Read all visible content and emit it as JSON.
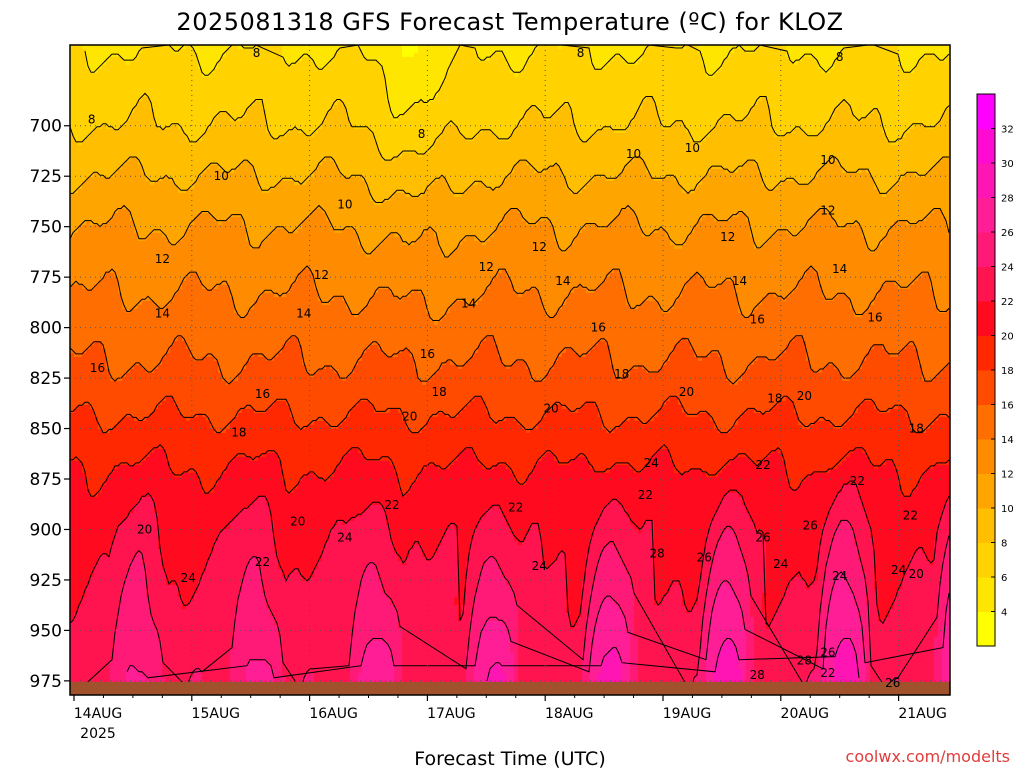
{
  "chart_data": {
    "type": "heatmap",
    "title": "2025081318 GFS Forecast Temperature (ºC) for KLOZ",
    "xlabel": "Forecast Time (UTC)",
    "ylabel": "",
    "x_ticks": [
      "14AUG",
      "15AUG",
      "16AUG",
      "17AUG",
      "18AUG",
      "19AUG",
      "20AUG",
      "21AUG"
    ],
    "x_year": "2025",
    "y_axis": {
      "min": 660,
      "max": 982,
      "reversed": true
    },
    "y_ticks": [
      700,
      725,
      750,
      775,
      800,
      825,
      850,
      875,
      900,
      925,
      950,
      975
    ],
    "x_range": {
      "start_day": 0,
      "end_day": 7.2
    },
    "colorbar": {
      "levels": [
        2,
        4,
        6,
        8,
        10,
        12,
        14,
        16,
        18,
        20,
        22,
        24,
        26,
        28,
        30,
        32,
        34
      ],
      "tick_labels": [
        4,
        6,
        8,
        10,
        12,
        14,
        16,
        18,
        20,
        22,
        24,
        26,
        28,
        30,
        32
      ],
      "colors": [
        "#ffff00",
        "#ffe600",
        "#ffd200",
        "#ffbe00",
        "#ffa500",
        "#ff8c00",
        "#ff6e00",
        "#ff4b00",
        "#ff2800",
        "#ff0a1e",
        "#ff1450",
        "#ff1a78",
        "#ff1e96",
        "#ff14b4",
        "#ff0ad2",
        "#ff00ff"
      ]
    },
    "isotherm_profile": {
      "pressure": [
        680,
        700,
        725,
        750,
        775,
        800,
        825,
        850,
        875,
        900,
        925,
        950,
        975
      ],
      "temperature": [
        7,
        8,
        10,
        12,
        13.5,
        15,
        16.5,
        18.5,
        20.5,
        22,
        23,
        24,
        25
      ]
    },
    "contour_labels": [
      {
        "t": "8",
        "x": 0.15,
        "p": 697
      },
      {
        "t": "8",
        "x": 1.55,
        "p": 664
      },
      {
        "t": "8",
        "x": 2.95,
        "p": 704
      },
      {
        "t": "8",
        "x": 4.3,
        "p": 664
      },
      {
        "t": "8",
        "x": 6.5,
        "p": 666
      },
      {
        "t": "10",
        "x": 1.25,
        "p": 725
      },
      {
        "t": "10",
        "x": 2.3,
        "p": 739
      },
      {
        "t": "10",
        "x": 4.75,
        "p": 714
      },
      {
        "t": "10",
        "x": 5.25,
        "p": 711
      },
      {
        "t": "10",
        "x": 6.4,
        "p": 717
      },
      {
        "t": "12",
        "x": 0.75,
        "p": 766
      },
      {
        "t": "12",
        "x": 2.1,
        "p": 774
      },
      {
        "t": "12",
        "x": 3.5,
        "p": 770
      },
      {
        "t": "12",
        "x": 3.95,
        "p": 760
      },
      {
        "t": "12",
        "x": 5.55,
        "p": 755
      },
      {
        "t": "12",
        "x": 6.4,
        "p": 742
      },
      {
        "t": "14",
        "x": 0.75,
        "p": 793
      },
      {
        "t": "14",
        "x": 1.95,
        "p": 793
      },
      {
        "t": "14",
        "x": 3.35,
        "p": 788
      },
      {
        "t": "14",
        "x": 4.15,
        "p": 777
      },
      {
        "t": "14",
        "x": 5.65,
        "p": 777
      },
      {
        "t": "14",
        "x": 6.5,
        "p": 771
      },
      {
        "t": "16",
        "x": 0.2,
        "p": 820
      },
      {
        "t": "16",
        "x": 1.6,
        "p": 833
      },
      {
        "t": "16",
        "x": 3.0,
        "p": 813
      },
      {
        "t": "16",
        "x": 4.45,
        "p": 800
      },
      {
        "t": "16",
        "x": 5.8,
        "p": 796
      },
      {
        "t": "16",
        "x": 6.8,
        "p": 795
      },
      {
        "t": "18",
        "x": 1.4,
        "p": 852
      },
      {
        "t": "18",
        "x": 3.1,
        "p": 832
      },
      {
        "t": "18",
        "x": 4.65,
        "p": 823
      },
      {
        "t": "18",
        "x": 5.95,
        "p": 835
      },
      {
        "t": "18",
        "x": 7.15,
        "p": 850
      },
      {
        "t": "20",
        "x": 0.6,
        "p": 900
      },
      {
        "t": "20",
        "x": 1.9,
        "p": 896
      },
      {
        "t": "20",
        "x": 2.85,
        "p": 844
      },
      {
        "t": "20",
        "x": 4.05,
        "p": 840
      },
      {
        "t": "20",
        "x": 5.2,
        "p": 832
      },
      {
        "t": "20",
        "x": 6.2,
        "p": 834
      },
      {
        "t": "20",
        "x": 7.15,
        "p": 922
      },
      {
        "t": "22",
        "x": 1.6,
        "p": 916
      },
      {
        "t": "22",
        "x": 2.7,
        "p": 888
      },
      {
        "t": "22",
        "x": 3.75,
        "p": 889
      },
      {
        "t": "22",
        "x": 4.85,
        "p": 883
      },
      {
        "t": "22",
        "x": 5.85,
        "p": 868
      },
      {
        "t": "22",
        "x": 6.65,
        "p": 876
      },
      {
        "t": "22",
        "x": 7.1,
        "p": 893
      },
      {
        "t": "22",
        "x": 6.4,
        "p": 971
      },
      {
        "t": "24",
        "x": 0.97,
        "p": 924
      },
      {
        "t": "24",
        "x": 2.3,
        "p": 904
      },
      {
        "t": "24",
        "x": 3.95,
        "p": 918
      },
      {
        "t": "24",
        "x": 4.9,
        "p": 867
      },
      {
        "t": "24",
        "x": 6.0,
        "p": 917
      },
      {
        "t": "24",
        "x": 6.5,
        "p": 923
      },
      {
        "t": "24",
        "x": 7.0,
        "p": 920
      },
      {
        "t": "26",
        "x": 5.35,
        "p": 914
      },
      {
        "t": "26",
        "x": 5.85,
        "p": 904
      },
      {
        "t": "26",
        "x": 6.25,
        "p": 898
      },
      {
        "t": "26",
        "x": 6.4,
        "p": 961
      },
      {
        "t": "26",
        "x": 6.95,
        "p": 976
      },
      {
        "t": "28",
        "x": 4.95,
        "p": 912
      },
      {
        "t": "28",
        "x": 5.8,
        "p": 972
      },
      {
        "t": "28",
        "x": 6.2,
        "p": 965
      }
    ]
  },
  "credit": "coolwx.com/modelts",
  "colors": {
    "ground": "#a0522d",
    "frame": "#000000",
    "gridline": "#555555"
  }
}
